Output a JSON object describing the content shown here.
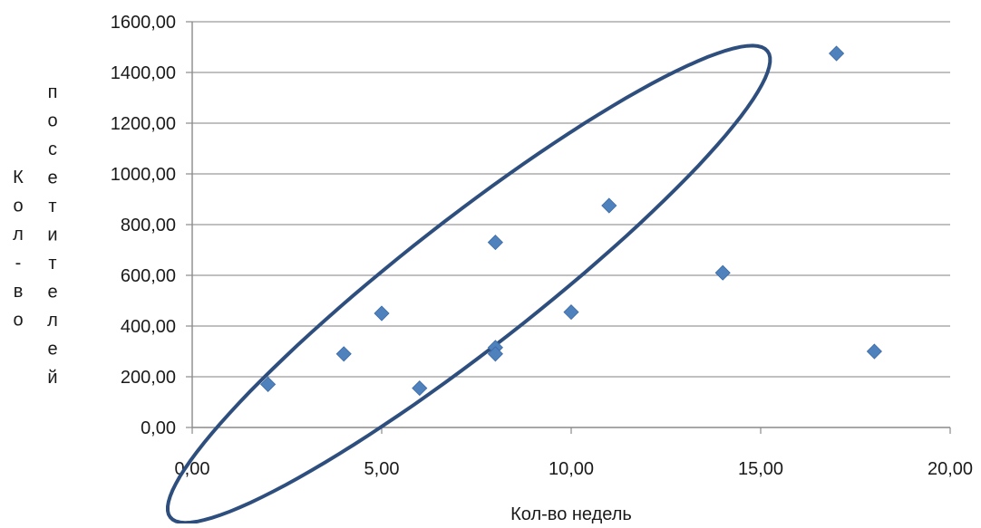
{
  "chart_data": {
    "type": "scatter",
    "title": "",
    "xlabel": "Кол-во недель",
    "ylabel": "Кол-во посетителей",
    "xlim": [
      0,
      20
    ],
    "ylim": [
      0,
      1600
    ],
    "x_ticks": [
      "0,00",
      "5,00",
      "10,00",
      "15,00",
      "20,00"
    ],
    "y_ticks": [
      "0,00",
      "200,00",
      "400,00",
      "600,00",
      "800,00",
      "1000,00",
      "1200,00",
      "1400,00",
      "1600,00"
    ],
    "grid": "horizontal",
    "legend": "none",
    "marker": "diamond",
    "marker_color": "#4f81bd",
    "ellipse_color": "#2e4f7e",
    "series": [
      {
        "x": [
          2,
          4,
          5,
          6,
          8,
          8,
          8,
          10,
          11,
          14,
          17,
          18
        ],
        "y": [
          170,
          290,
          450,
          155,
          730,
          315,
          290,
          455,
          875,
          610,
          1475,
          300
        ]
      }
    ],
    "annotation": {
      "shape": "ellipse",
      "description": "cluster outline",
      "center": [
        7.3,
        565
      ],
      "semi_major": 10.0,
      "semi_minor": 1.7,
      "angle_deg": 38
    }
  }
}
